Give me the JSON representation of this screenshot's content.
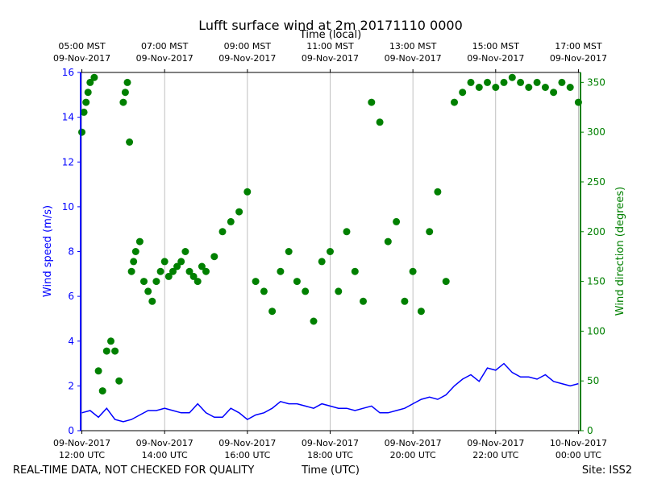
{
  "chart_data": {
    "type": "line+scatter",
    "title": "Lufft surface wind at 2m 20171110 0000",
    "top_axis_label": "Time (local)",
    "xlabel": "Time (UTC)",
    "ylabel_left": "Wind speed (m/s)",
    "ylabel_right": "Wind direction (degrees)",
    "footer_left": "REAL-TIME DATA, NOT CHECKED FOR QUALITY",
    "footer_right": "Site: ISS2",
    "x_range_hours_utc": [
      11.97,
      24.05
    ],
    "y_left_range": [
      0,
      16
    ],
    "y_right_range": [
      0,
      360
    ],
    "y_left_ticks": [
      0,
      2,
      4,
      6,
      8,
      10,
      12,
      14,
      16
    ],
    "y_right_ticks": [
      0,
      50,
      100,
      150,
      200,
      250,
      300,
      350
    ],
    "colors": {
      "speed": "#0000ff",
      "direction": "#008000",
      "grid": "#b0b0b0"
    },
    "bottom_ticks": [
      {
        "hour": 12,
        "line1": "09-Nov-2017",
        "line2": "12:00 UTC"
      },
      {
        "hour": 14,
        "line1": "09-Nov-2017",
        "line2": "14:00 UTC"
      },
      {
        "hour": 16,
        "line1": "09-Nov-2017",
        "line2": "16:00 UTC"
      },
      {
        "hour": 18,
        "line1": "09-Nov-2017",
        "line2": "18:00 UTC"
      },
      {
        "hour": 20,
        "line1": "09-Nov-2017",
        "line2": "20:00 UTC"
      },
      {
        "hour": 22,
        "line1": "09-Nov-2017",
        "line2": "22:00 UTC"
      },
      {
        "hour": 24,
        "line1": "10-Nov-2017",
        "line2": "00:00 UTC"
      }
    ],
    "top_ticks": [
      {
        "hour": 12,
        "line1": "05:00 MST",
        "line2": "09-Nov-2017"
      },
      {
        "hour": 14,
        "line1": "07:00 MST",
        "line2": "09-Nov-2017"
      },
      {
        "hour": 16,
        "line1": "09:00 MST",
        "line2": "09-Nov-2017"
      },
      {
        "hour": 18,
        "line1": "11:00 MST",
        "line2": "09-Nov-2017"
      },
      {
        "hour": 20,
        "line1": "13:00 MST",
        "line2": "09-Nov-2017"
      },
      {
        "hour": 22,
        "line1": "15:00 MST",
        "line2": "09-Nov-2017"
      },
      {
        "hour": 24,
        "line1": "17:00 MST",
        "line2": "09-Nov-2017"
      }
    ],
    "series": [
      {
        "name": "Wind speed (m/s)",
        "kind": "line",
        "axis": "left",
        "x_hours": [
          12.0,
          12.2,
          12.4,
          12.6,
          12.8,
          13.0,
          13.2,
          13.4,
          13.6,
          13.8,
          14.0,
          14.2,
          14.4,
          14.6,
          14.8,
          15.0,
          15.2,
          15.4,
          15.6,
          15.8,
          16.0,
          16.2,
          16.4,
          16.6,
          16.8,
          17.0,
          17.2,
          17.4,
          17.6,
          17.8,
          18.0,
          18.2,
          18.4,
          18.6,
          18.8,
          19.0,
          19.2,
          19.4,
          19.6,
          19.8,
          20.0,
          20.2,
          20.4,
          20.6,
          20.8,
          21.0,
          21.2,
          21.4,
          21.6,
          21.8,
          22.0,
          22.2,
          22.4,
          22.6,
          22.8,
          23.0,
          23.2,
          23.4,
          23.6,
          23.8,
          24.0
        ],
        "values": [
          0.8,
          0.9,
          0.6,
          1.0,
          0.5,
          0.4,
          0.5,
          0.7,
          0.9,
          0.9,
          1.0,
          0.9,
          0.8,
          0.8,
          1.2,
          0.8,
          0.6,
          0.6,
          1.0,
          0.8,
          0.5,
          0.7,
          0.8,
          1.0,
          1.3,
          1.2,
          1.2,
          1.1,
          1.0,
          1.2,
          1.1,
          1.0,
          1.0,
          0.9,
          1.0,
          1.1,
          0.8,
          0.8,
          0.9,
          1.0,
          1.2,
          1.4,
          1.5,
          1.4,
          1.6,
          2.0,
          2.3,
          2.5,
          2.2,
          2.8,
          2.7,
          3.0,
          2.6,
          2.4,
          2.4,
          2.3,
          2.5,
          2.2,
          2.1,
          2.0,
          2.1
        ]
      },
      {
        "name": "Wind direction (degrees)",
        "kind": "scatter",
        "axis": "right",
        "x_hours": [
          12.0,
          12.05,
          12.1,
          12.15,
          12.2,
          12.3,
          12.4,
          12.5,
          12.6,
          12.7,
          12.8,
          12.9,
          13.0,
          13.05,
          13.1,
          13.15,
          13.2,
          13.25,
          13.3,
          13.4,
          13.5,
          13.6,
          13.7,
          13.8,
          13.9,
          14.0,
          14.1,
          14.2,
          14.3,
          14.4,
          14.5,
          14.6,
          14.7,
          14.8,
          14.9,
          15.0,
          15.2,
          15.4,
          15.6,
          15.8,
          16.0,
          16.2,
          16.4,
          16.6,
          16.8,
          17.0,
          17.2,
          17.4,
          17.6,
          17.8,
          18.0,
          18.2,
          18.4,
          18.6,
          18.8,
          19.0,
          19.2,
          19.4,
          19.6,
          19.8,
          20.0,
          20.2,
          20.4,
          20.6,
          20.8,
          21.0,
          21.2,
          21.4,
          21.6,
          21.8,
          22.0,
          22.2,
          22.4,
          22.6,
          22.8,
          23.0,
          23.2,
          23.4,
          23.6,
          23.8,
          24.0
        ],
        "values": [
          300,
          320,
          330,
          340,
          350,
          355,
          60,
          40,
          80,
          90,
          80,
          50,
          330,
          340,
          350,
          290,
          160,
          170,
          180,
          190,
          150,
          140,
          130,
          150,
          160,
          170,
          155,
          160,
          165,
          170,
          180,
          160,
          155,
          150,
          165,
          160,
          175,
          200,
          210,
          220,
          240,
          150,
          140,
          120,
          160,
          180,
          150,
          140,
          110,
          170,
          180,
          140,
          200,
          160,
          130,
          330,
          310,
          190,
          210,
          130,
          160,
          120,
          200,
          240,
          150,
          330,
          340,
          350,
          345,
          350,
          345,
          350,
          355,
          350,
          345,
          350,
          345,
          340,
          350,
          345,
          330
        ]
      }
    ]
  }
}
